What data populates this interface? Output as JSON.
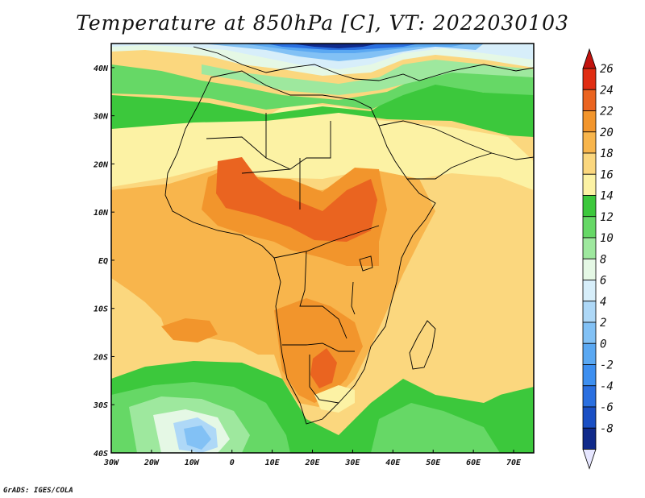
{
  "title": "Temperature at 850hPa [C], VT: 2022030103",
  "credit": "GrADS: IGES/COLA",
  "map": {
    "lon_range": [
      -30,
      75
    ],
    "lat_range": [
      -40,
      45
    ],
    "x_ticks": [
      "30W",
      "20W",
      "10W",
      "0",
      "10E",
      "20E",
      "30E",
      "40E",
      "50E",
      "60E",
      "70E"
    ],
    "y_ticks": [
      "40N",
      "30N",
      "20N",
      "10N",
      "EQ",
      "10S",
      "20S",
      "30S",
      "40S"
    ]
  },
  "colorbar": {
    "labels": [
      "26",
      "24",
      "22",
      "20",
      "18",
      "16",
      "14",
      "12",
      "10",
      "8",
      "6",
      "4",
      "2",
      "0",
      "-2",
      "-4",
      "-6",
      "-8"
    ],
    "colors": {
      "c_m10": "#e6e6ff",
      "c_m8": "#102a8a",
      "c_m6": "#1a4fc4",
      "c_m4": "#2a6fe0",
      "c_m2": "#3d8ff0",
      "c_0": "#5aa8f2",
      "c_2": "#82c1f5",
      "c_4": "#aed8f7",
      "c_6": "#d7eefa",
      "c_8": "#e5f8e5",
      "c_10": "#9ee89e",
      "c_12": "#66d866",
      "c_14": "#3cc83c",
      "c_16": "#fcf2a4",
      "c_18": "#fbd77e",
      "c_20": "#f8b54c",
      "c_22": "#f2952c",
      "c_24": "#ea6420",
      "c_26": "#e02d12",
      "c_28": "#c2130e"
    }
  }
}
